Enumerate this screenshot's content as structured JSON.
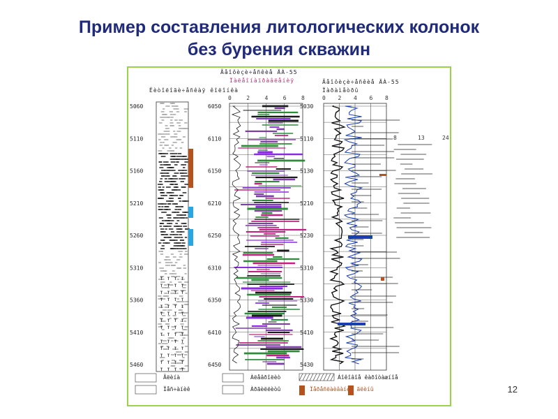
{
  "slide": {
    "title_line1": "Пример составления литологических колонок",
    "title_line2": "без бурения скважин",
    "page_number": "12"
  },
  "figure": {
    "col1_header": "Ëèòîëîãè÷åñêàÿ êîëîíêà",
    "col2_header": "Ãåîôèçè÷åñêèå ÄÀ-55",
    "col2_sub": "Ïàëåîíàïðàâëåíèÿ",
    "col3_header": "Ãåîôèçè÷åñêèå ÄÀ-55",
    "col3_sub": "Ïàðàìåòðû",
    "scale_ticks": [
      "0",
      "2",
      "4",
      "6",
      "8"
    ],
    "depths_left": [
      "5060",
      "5110",
      "5160",
      "5210",
      "5260",
      "5310",
      "5360",
      "5410",
      "5460"
    ],
    "depths_mid": [
      "6050",
      "6110",
      "6150",
      "6210",
      "6250",
      "6310",
      "6350",
      "6410",
      "6450"
    ],
    "depths_right": [
      "5030",
      "5110",
      "5130",
      "5210",
      "5230",
      "5310",
      "5330",
      "5410",
      "5430"
    ],
    "legend": [
      {
        "label": "Ãëèíà",
        "color": "#888888"
      },
      {
        "label": "Ïåñ÷àíèê",
        "color": "#888888"
      },
      {
        "label": "Àëåâðîëèò",
        "color": "#888888"
      },
      {
        "label": "Àðãèëëèòû",
        "color": "#2aa7e0"
      },
      {
        "label": "Ïåðåñëàèâàíèå ãëèíû",
        "color": "#b5531e"
      },
      {
        "label": "Áîêîâîå êàðîòàæíîå",
        "color": "#888888"
      }
    ]
  }
}
